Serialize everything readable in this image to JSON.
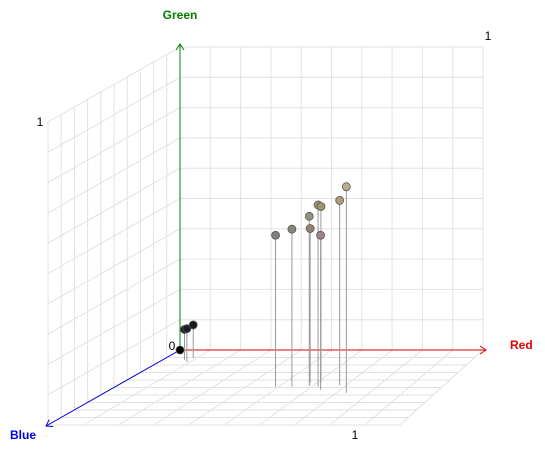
{
  "chart_data": {
    "type": "scatter3d",
    "xlabel": "Red",
    "ylabel": "Green",
    "zlabel": "Blue",
    "xlim": [
      0,
      1
    ],
    "ylim": [
      0,
      1
    ],
    "zlim": [
      0,
      1
    ],
    "xticks": [
      1
    ],
    "yticks": [
      0,
      1
    ],
    "zticks": [
      1
    ],
    "axis_colors": {
      "x": "#e00000",
      "y": "#008000",
      "z": "#0000e0"
    },
    "grid": true,
    "x": [
      0.49,
      0.54,
      0.59,
      0.58,
      0.62,
      0.61,
      0.64,
      0.68,
      0.73,
      0,
      0.07,
      0.09,
      0.09
    ],
    "y": [
      0.5,
      0.52,
      0.56,
      0.51,
      0.6,
      0.58,
      0.51,
      0.61,
      0.68,
      0,
      0.1,
      0.11,
      0.11
    ],
    "z": [
      0.49,
      0.49,
      0.48,
      0.44,
      0.49,
      0.43,
      0.53,
      0.47,
      0.57,
      0,
      0.13,
      0.16,
      0.11
    ]
  }
}
